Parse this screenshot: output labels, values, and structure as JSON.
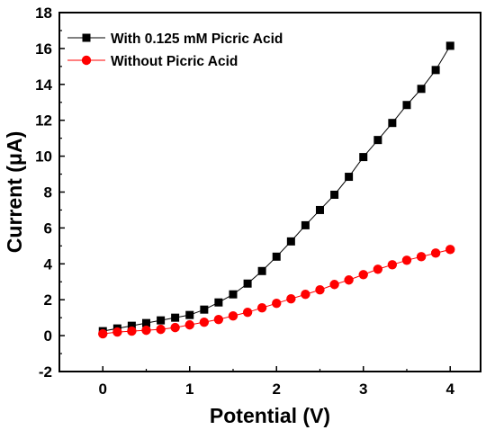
{
  "chart_data": {
    "type": "line",
    "xlabel": "Potential (V)",
    "ylabel": "Current (μA)",
    "xlim": [
      -0.5,
      4.35
    ],
    "ylim": [
      -2,
      18
    ],
    "x_ticks": [
      0,
      1,
      2,
      3,
      4
    ],
    "y_ticks": [
      -2,
      0,
      2,
      4,
      6,
      8,
      10,
      12,
      14,
      16,
      18
    ],
    "legend_position": "top-left",
    "grid": false,
    "series": [
      {
        "name": "With 0.125 mM Picric Acid",
        "color": "#000000",
        "marker": "square",
        "x": [
          0,
          0.167,
          0.333,
          0.5,
          0.667,
          0.833,
          1.0,
          1.167,
          1.333,
          1.5,
          1.667,
          1.833,
          2.0,
          2.167,
          2.333,
          2.5,
          2.667,
          2.833,
          3.0,
          3.167,
          3.333,
          3.5,
          3.667,
          3.833,
          4.0
        ],
        "y": [
          0.25,
          0.4,
          0.55,
          0.7,
          0.85,
          1.0,
          1.15,
          1.45,
          1.85,
          2.3,
          2.9,
          3.6,
          4.4,
          5.25,
          6.15,
          7.0,
          7.85,
          8.85,
          9.95,
          10.9,
          11.85,
          12.85,
          13.75,
          14.8,
          16.15
        ]
      },
      {
        "name": "Without Picric Acid",
        "color": "#ff0000",
        "marker": "circle",
        "x": [
          0,
          0.167,
          0.333,
          0.5,
          0.667,
          0.833,
          1.0,
          1.167,
          1.333,
          1.5,
          1.667,
          1.833,
          2.0,
          2.167,
          2.333,
          2.5,
          2.667,
          2.833,
          3.0,
          3.167,
          3.333,
          3.5,
          3.667,
          3.833,
          4.0
        ],
        "y": [
          0.1,
          0.2,
          0.25,
          0.3,
          0.35,
          0.45,
          0.6,
          0.75,
          0.9,
          1.1,
          1.3,
          1.55,
          1.8,
          2.05,
          2.3,
          2.55,
          2.85,
          3.1,
          3.4,
          3.7,
          3.95,
          4.2,
          4.4,
          4.6,
          4.8
        ]
      }
    ]
  }
}
